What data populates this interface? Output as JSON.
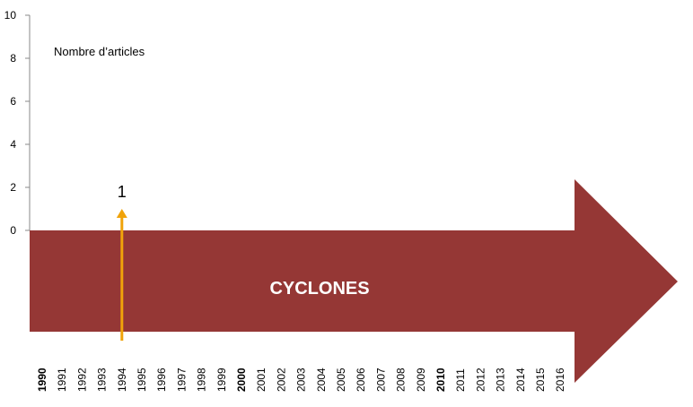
{
  "chart_data": {
    "type": "arrow-timeline",
    "y_label": "Nombre d’articles",
    "banner": "CYCLONES",
    "banner_color": "#953735",
    "categories": [
      "1990",
      "1991",
      "1992",
      "1993",
      "1994",
      "1995",
      "1996",
      "1997",
      "1998",
      "1999",
      "2000",
      "2001",
      "2002",
      "2003",
      "2004",
      "2005",
      "2006",
      "2007",
      "2008",
      "2009",
      "2010",
      "2011",
      "2012",
      "2013",
      "2014",
      "2015",
      "2016"
    ],
    "emphasized_categories": [
      0,
      10,
      20
    ],
    "series": [
      {
        "color": "#f0a30a",
        "values": [
          null,
          null,
          null,
          null,
          1,
          null,
          null,
          null,
          null,
          null,
          null,
          null,
          null,
          null,
          null,
          null,
          null,
          null,
          null,
          null,
          null,
          null,
          null,
          null,
          null,
          null,
          null
        ]
      }
    ],
    "ylim": [
      0,
      10
    ],
    "yticks": [
      0,
      2,
      4,
      6,
      8,
      10
    ]
  }
}
